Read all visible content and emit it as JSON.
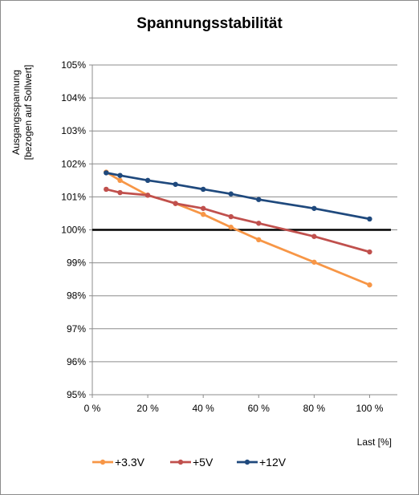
{
  "chart_data": {
    "type": "line",
    "title": "Spannungsstabilität",
    "xlabel": "Last [%]",
    "ylabel_line1": "Ausgangsspannung",
    "ylabel_line2": "[bezogen auf Sollwert]",
    "xlim": [
      0,
      110
    ],
    "ylim": [
      95,
      105
    ],
    "x_ticks": [
      0,
      20,
      40,
      60,
      80,
      100
    ],
    "x_tick_labels": [
      "0 %",
      "20 %",
      "40 %",
      "60 %",
      "80 %",
      "100 %"
    ],
    "y_ticks": [
      95,
      96,
      97,
      98,
      99,
      100,
      101,
      102,
      103,
      104,
      105
    ],
    "y_tick_labels": [
      "95%",
      "96%",
      "97%",
      "98%",
      "99%",
      "100%",
      "101%",
      "102%",
      "103%",
      "104%",
      "105%"
    ],
    "grid": "horizontal",
    "legend_position": "bottom",
    "reference_line": {
      "y": 100,
      "color": "#000000"
    },
    "series": [
      {
        "name": "+3.3V",
        "color": "#f79646",
        "x": [
          5,
          10,
          20,
          30,
          40,
          50,
          60,
          80,
          100
        ],
        "values": [
          101.75,
          101.5,
          101.05,
          100.8,
          100.47,
          100.08,
          99.7,
          99.02,
          98.33
        ]
      },
      {
        "name": "+5V",
        "color": "#c0504d",
        "x": [
          5,
          10,
          20,
          30,
          40,
          50,
          60,
          80,
          100
        ],
        "values": [
          101.23,
          101.13,
          101.05,
          100.8,
          100.65,
          100.4,
          100.2,
          99.8,
          99.33
        ]
      },
      {
        "name": "+12V",
        "color": "#1f497d",
        "x": [
          5,
          10,
          20,
          30,
          40,
          50,
          60,
          80,
          100
        ],
        "values": [
          101.73,
          101.65,
          101.5,
          101.38,
          101.23,
          101.09,
          100.92,
          100.65,
          100.33
        ]
      }
    ]
  }
}
